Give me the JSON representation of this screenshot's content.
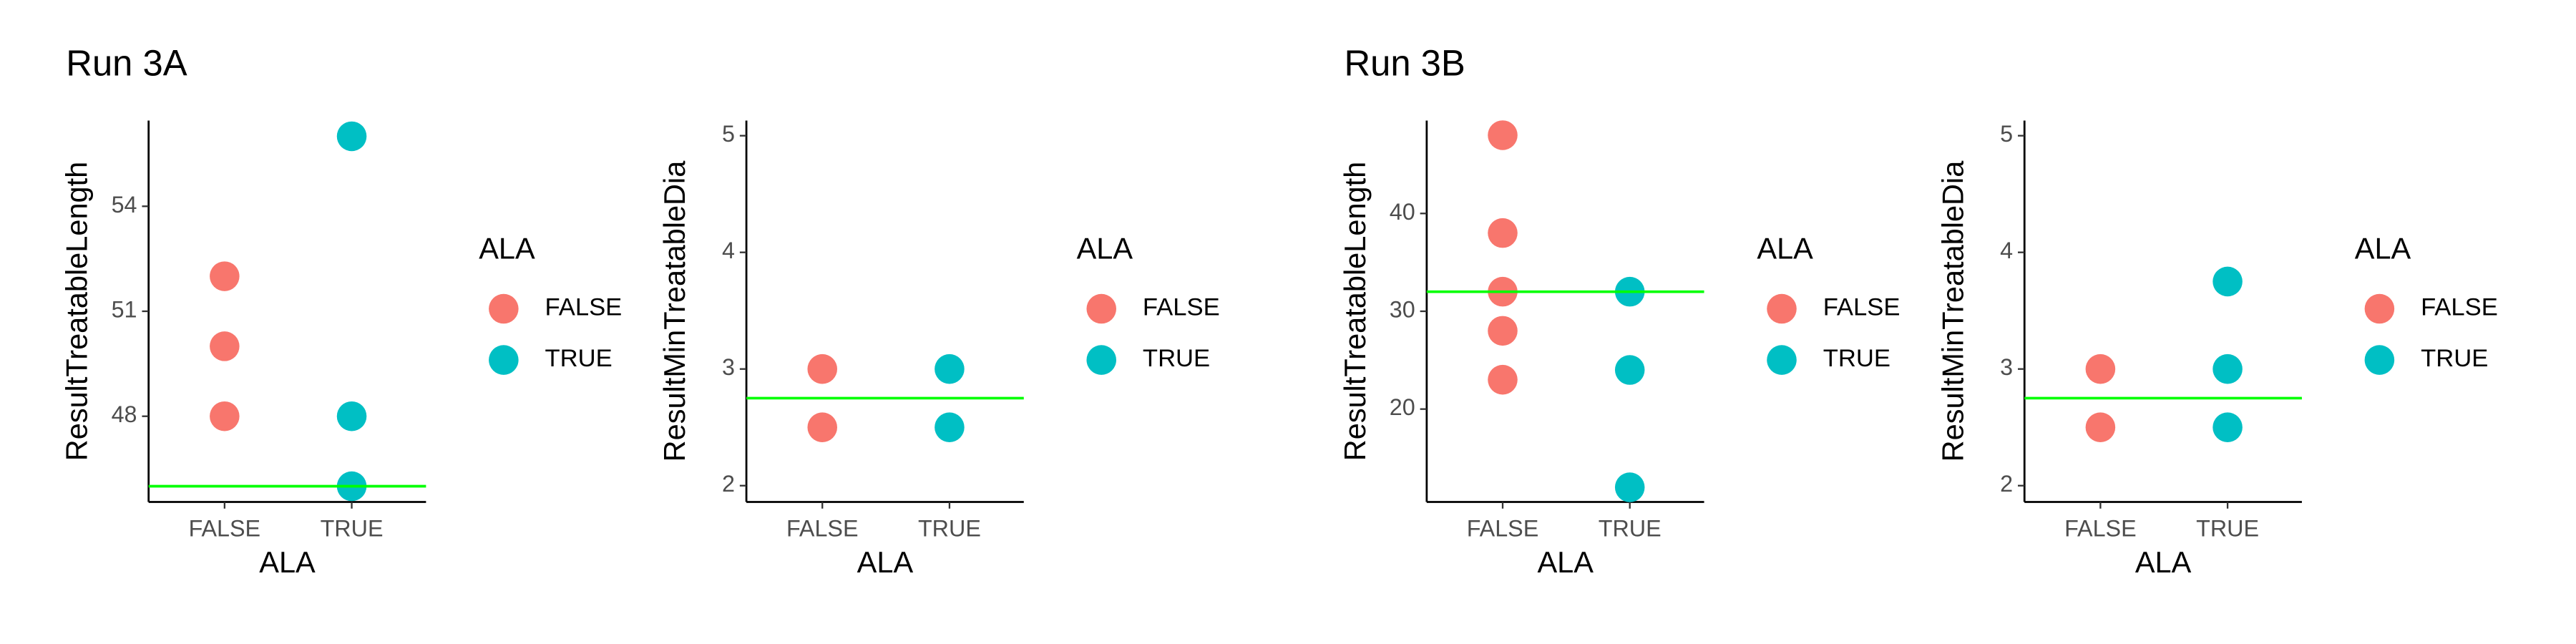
{
  "chart_data": [
    {
      "type": "scatter",
      "title": "Run 3A",
      "x_label": "ALA",
      "y_label": "ResultTreatableLength",
      "legend_title": "ALA",
      "categories": [
        "FALSE",
        "TRUE"
      ],
      "series": [
        {
          "name": "FALSE",
          "color": "#F8766D",
          "x": [
            "FALSE",
            "FALSE",
            "FALSE"
          ],
          "values": [
            52,
            50,
            48
          ]
        },
        {
          "name": "TRUE",
          "color": "#00BFC4",
          "x": [
            "TRUE",
            "TRUE",
            "TRUE"
          ],
          "values": [
            56,
            48,
            46
          ]
        }
      ],
      "ylim": [
        45.55,
        56.45
      ],
      "yticks": [
        48,
        51,
        54
      ],
      "hline": 46,
      "hline_color": "#00FF00"
    },
    {
      "type": "scatter",
      "x_label": "ALA",
      "y_label": "ResultMinTreatableDia",
      "legend_title": "ALA",
      "categories": [
        "FALSE",
        "TRUE"
      ],
      "series": [
        {
          "name": "FALSE",
          "color": "#F8766D",
          "x": [
            "FALSE",
            "FALSE"
          ],
          "values": [
            3,
            2.5
          ]
        },
        {
          "name": "TRUE",
          "color": "#00BFC4",
          "x": [
            "TRUE",
            "TRUE"
          ],
          "values": [
            3,
            2.5
          ]
        }
      ],
      "ylim": [
        1.86,
        5.13
      ],
      "yticks": [
        2,
        3,
        4,
        5
      ],
      "hline": 2.75,
      "hline_color": "#00FF00"
    },
    {
      "type": "scatter",
      "title": "Run 3B",
      "x_label": "ALA",
      "y_label": "ResultTreatableLength",
      "legend_title": "ALA",
      "categories": [
        "FALSE",
        "TRUE"
      ],
      "series": [
        {
          "name": "FALSE",
          "color": "#F8766D",
          "x": [
            "FALSE",
            "FALSE",
            "FALSE",
            "FALSE",
            "FALSE"
          ],
          "values": [
            48,
            38,
            32,
            28,
            23
          ]
        },
        {
          "name": "TRUE",
          "color": "#00BFC4",
          "x": [
            "TRUE",
            "TRUE",
            "TRUE"
          ],
          "values": [
            32,
            24,
            12
          ]
        }
      ],
      "ylim": [
        10.5,
        49.5
      ],
      "yticks": [
        20,
        30,
        40
      ],
      "hline": 32,
      "hline_color": "#00FF00"
    },
    {
      "type": "scatter",
      "x_label": "ALA",
      "y_label": "ResultMinTreatableDia",
      "legend_title": "ALA",
      "categories": [
        "FALSE",
        "TRUE"
      ],
      "series": [
        {
          "name": "FALSE",
          "color": "#F8766D",
          "x": [
            "FALSE",
            "FALSE"
          ],
          "values": [
            3,
            2.5
          ]
        },
        {
          "name": "TRUE",
          "color": "#00BFC4",
          "x": [
            "TRUE",
            "TRUE",
            "TRUE"
          ],
          "values": [
            3.75,
            3,
            2.5
          ]
        }
      ],
      "ylim": [
        1.86,
        5.13
      ],
      "yticks": [
        2,
        3,
        4,
        5
      ],
      "hline": 2.75,
      "hline_color": "#00FF00"
    }
  ]
}
